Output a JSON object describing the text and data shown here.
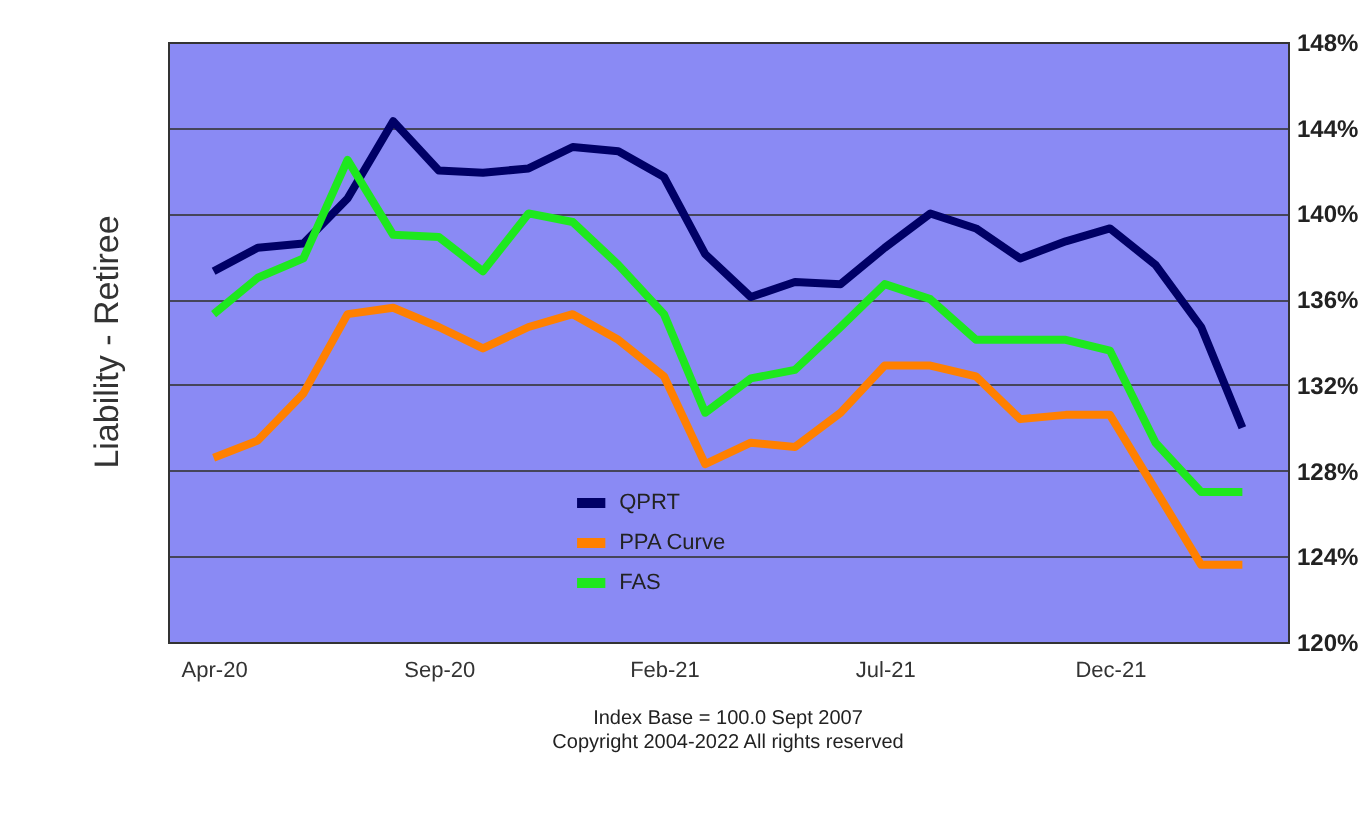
{
  "chart_data": {
    "type": "line",
    "ylabel": "Liability - Retiree",
    "x": [
      "2020-04",
      "2020-05",
      "2020-06",
      "2020-07",
      "2020-08",
      "2020-09",
      "2020-10",
      "2020-11",
      "2020-12",
      "2021-01",
      "2021-02",
      "2021-03",
      "2021-04",
      "2021-05",
      "2021-06",
      "2021-07",
      "2021-08",
      "2021-09",
      "2021-10",
      "2021-11",
      "2021-12",
      "2022-01",
      "2022-02",
      "2022-03"
    ],
    "series": [
      {
        "name": "QPRT",
        "color": "#000066",
        "values": [
          137.3,
          138.4,
          138.6,
          140.7,
          144.3,
          142.0,
          141.9,
          142.1,
          143.1,
          142.9,
          141.7,
          138.1,
          136.1,
          136.8,
          136.7,
          138.4,
          140.0,
          139.3,
          137.9,
          138.7,
          139.3,
          137.6,
          134.7,
          130.0
        ]
      },
      {
        "name": "PPA Curve",
        "color": "#ff8000",
        "values": [
          128.6,
          129.4,
          131.6,
          135.3,
          135.6,
          134.7,
          133.7,
          134.7,
          135.3,
          134.1,
          132.4,
          128.3,
          129.3,
          129.1,
          130.7,
          132.9,
          132.9,
          132.4,
          130.4,
          130.6,
          130.6,
          127.1,
          123.6,
          123.6
        ]
      },
      {
        "name": "FAS",
        "color": "#1ee81e",
        "values": [
          135.3,
          137.0,
          137.9,
          142.5,
          139.0,
          138.9,
          137.3,
          140.0,
          139.6,
          137.6,
          135.3,
          130.7,
          132.3,
          132.7,
          134.7,
          136.7,
          136.0,
          134.1,
          134.1,
          134.1,
          133.6,
          129.3,
          127.0,
          127.0
        ]
      }
    ],
    "xlim": [
      "2020-03",
      "2022-04"
    ],
    "xticks": [
      {
        "value": "2020-04",
        "label": "Apr-20"
      },
      {
        "value": "2020-09",
        "label": "Sep-20"
      },
      {
        "value": "2021-02",
        "label": "Feb-21"
      },
      {
        "value": "2021-07",
        "label": "Jul-21"
      },
      {
        "value": "2021-12",
        "label": "Dec-21"
      }
    ],
    "ylim": [
      120,
      148
    ],
    "yticks": [
      {
        "value": 120,
        "label": "120%"
      },
      {
        "value": 124,
        "label": "124%"
      },
      {
        "value": 128,
        "label": "128%"
      },
      {
        "value": 132,
        "label": "132%"
      },
      {
        "value": 136,
        "label": "136%"
      },
      {
        "value": 140,
        "label": "140%"
      },
      {
        "value": 144,
        "label": "144%"
      },
      {
        "value": 148,
        "label": "148%"
      }
    ],
    "grid": "y",
    "legend": "bottom",
    "marker": "none",
    "line_style": "solid",
    "annotations": [
      "Index Base = 100.0 Sept 2007",
      "Copyright 2004-2022 All rights reserved"
    ]
  }
}
